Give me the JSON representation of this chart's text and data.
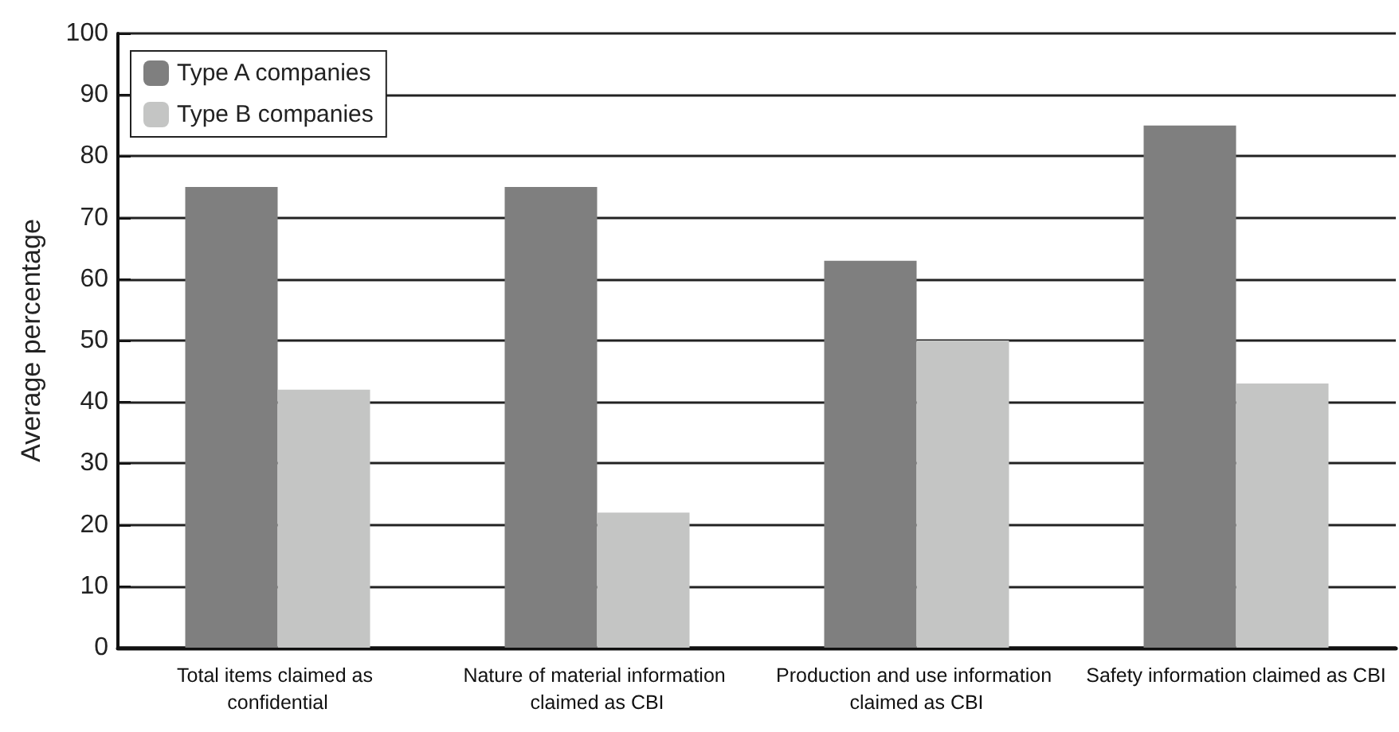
{
  "chart_data": {
    "type": "bar",
    "ylabel": "Average percentage",
    "categories": [
      "Total items claimed as confidential",
      "Nature of material information claimed as CBI",
      "Production and use information claimed as CBI",
      "Safety information claimed as CBI"
    ],
    "series": [
      {
        "name": "Type A companies",
        "color": "#7f7f7f",
        "values": [
          75,
          75,
          63,
          85
        ]
      },
      {
        "name": "Type B companies",
        "color": "#c4c5c4",
        "values": [
          42,
          22,
          50,
          43
        ]
      }
    ],
    "ylim": [
      0,
      100
    ],
    "yticks": [
      0,
      10,
      20,
      30,
      40,
      50,
      60,
      70,
      80,
      90,
      100
    ],
    "grid": "y",
    "legend": "top left"
  }
}
